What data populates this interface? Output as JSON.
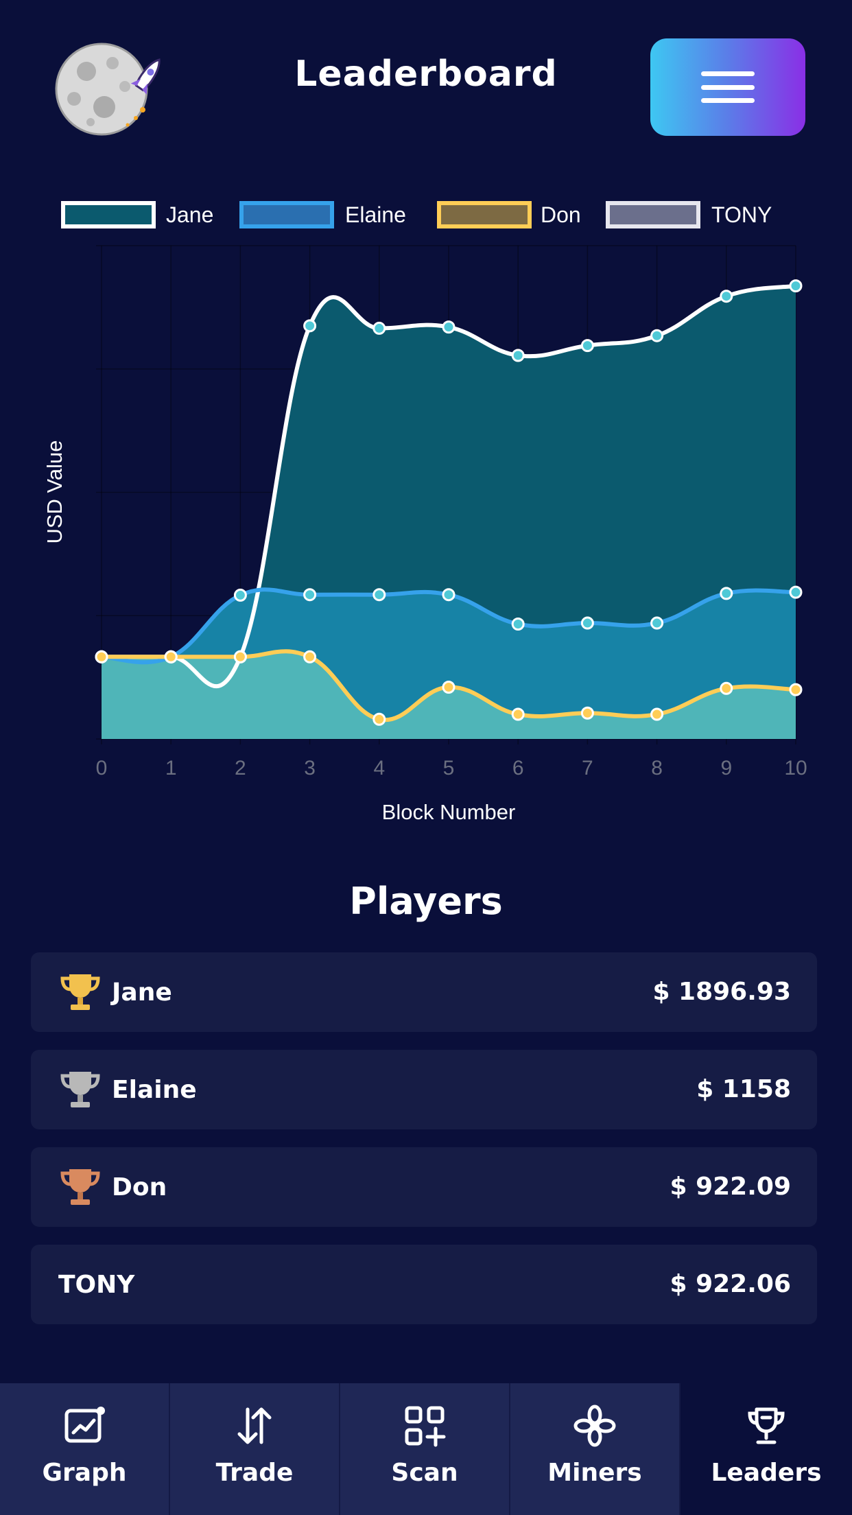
{
  "header": {
    "title": "Leaderboard"
  },
  "colors": {
    "background": "#0a0f3a",
    "card": "#161c45",
    "nav": "#1f2756",
    "jane_fill": "#0b5a6e",
    "jane_line": "#ffffff",
    "elaine_fill": "#1783a6",
    "elaine_line": "#36a2eb",
    "don_fill": "#4fb5b8",
    "don_line": "#ffcd56",
    "tony_fill": "#6b6f8c"
  },
  "chart_data": {
    "type": "area",
    "xlabel": "Block Number",
    "ylabel": "USD Value",
    "x": [
      0,
      1,
      2,
      3,
      4,
      5,
      6,
      7,
      8,
      9,
      10
    ],
    "ylim": [
      0,
      2000
    ],
    "grid": true,
    "legend_position": "top",
    "series": [
      {
        "name": "Jane",
        "values": [
          333,
          333,
          333,
          1675,
          1665,
          1670,
          1555,
          1595,
          1635,
          1795,
          1837
        ]
      },
      {
        "name": "Elaine",
        "values": [
          333,
          333,
          583,
          585,
          585,
          585,
          466,
          470,
          470,
          590,
          595
        ]
      },
      {
        "name": "Don",
        "values": [
          333,
          333,
          333,
          333,
          80,
          210,
          100,
          105,
          100,
          205,
          200
        ]
      },
      {
        "name": "TONY",
        "values": [
          333,
          333,
          333,
          333,
          80,
          210,
          100,
          105,
          100,
          205,
          200
        ]
      }
    ]
  },
  "players": {
    "title": "Players",
    "rows": [
      {
        "name": "Jane",
        "value": "$ 1896.93",
        "trophy": "gold-trophy-icon"
      },
      {
        "name": "Elaine",
        "value": "$ 1158",
        "trophy": "silver-trophy-icon"
      },
      {
        "name": "Don",
        "value": "$ 922.09",
        "trophy": "bronze-trophy-icon"
      },
      {
        "name": "TONY",
        "value": "$ 922.06",
        "trophy": ""
      }
    ]
  },
  "nav": {
    "items": [
      {
        "label": "Graph",
        "icon": "graph-icon"
      },
      {
        "label": "Trade",
        "icon": "trade-arrows-icon"
      },
      {
        "label": "Scan",
        "icon": "scan-grid-icon"
      },
      {
        "label": "Miners",
        "icon": "miners-flower-icon"
      },
      {
        "label": "Leaders",
        "icon": "trophy-icon"
      }
    ]
  }
}
